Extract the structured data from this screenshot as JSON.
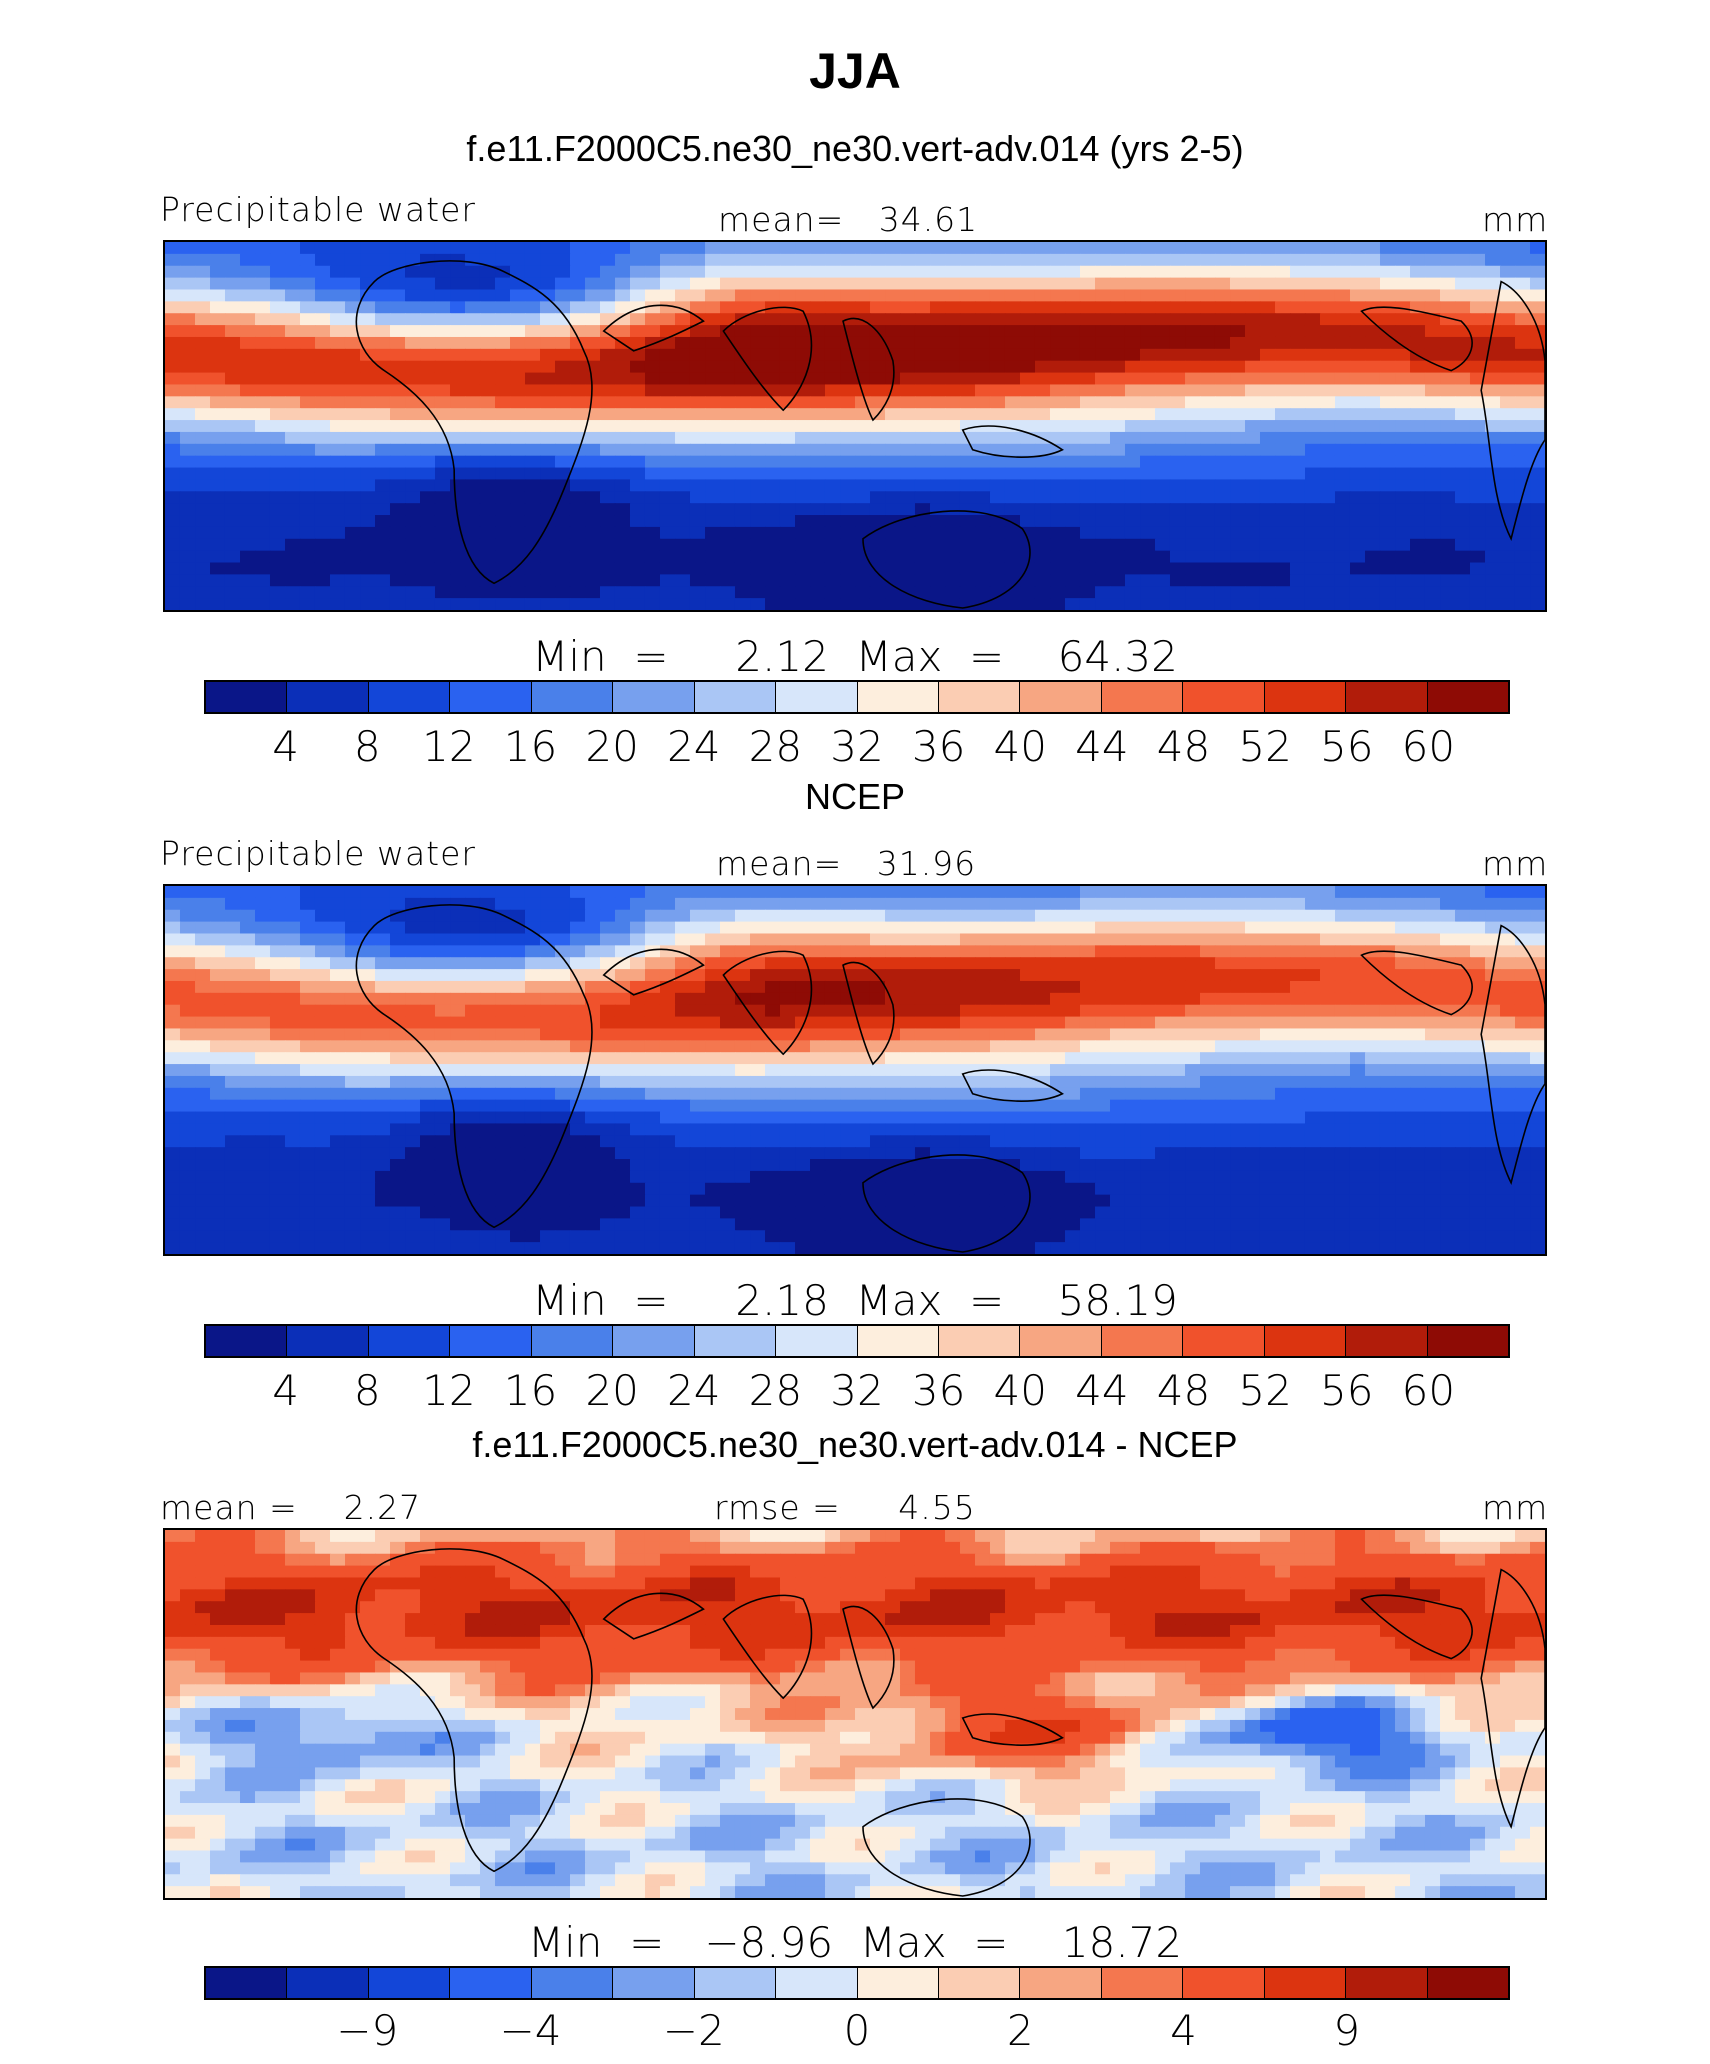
{
  "figure_title": "JJA",
  "colors": {
    "palette": [
      "#0a1688",
      "#0b2fb8",
      "#1346d8",
      "#2a62f0",
      "#4a80ea",
      "#77a0ee",
      "#aac6f5",
      "#d7e6fa",
      "#fdeedd",
      "#fbcdb3",
      "#f7a682",
      "#f4774f",
      "#f0522c",
      "#dc3410",
      "#b11c0a",
      "#8e0b05"
    ]
  },
  "panels": [
    {
      "title": "f.e11.F2000C5.ne30_ne30.vert-adv.014 (yrs 2-5)",
      "left_label": "Precipitable water",
      "center_label": "mean=   34.61",
      "right_label": "mm",
      "minmax": "Min  =     2.12  Max  =    64.32",
      "colorbar_ticks": [
        "4",
        "8",
        "12",
        "16",
        "20",
        "24",
        "28",
        "32",
        "36",
        "40",
        "44",
        "48",
        "52",
        "56",
        "60"
      ],
      "map": {
        "variable": "model_pw",
        "levels": [
          4,
          8,
          12,
          16,
          20,
          24,
          28,
          32,
          36,
          40,
          44,
          48,
          52,
          56,
          60
        ]
      }
    },
    {
      "title": "NCEP",
      "left_label": "Precipitable water",
      "center_label": "mean=   31.96",
      "right_label": "mm",
      "minmax": "Min  =     2.18  Max  =    58.19",
      "colorbar_ticks": [
        "4",
        "8",
        "12",
        "16",
        "20",
        "24",
        "28",
        "32",
        "36",
        "40",
        "44",
        "48",
        "52",
        "56",
        "60"
      ],
      "map": {
        "variable": "obs_pw",
        "levels": [
          4,
          8,
          12,
          16,
          20,
          24,
          28,
          32,
          36,
          40,
          44,
          48,
          52,
          56,
          60
        ]
      }
    },
    {
      "title": "f.e11.F2000C5.ne30_ne30.vert-adv.014 - NCEP",
      "left_label": "mean =    2.27",
      "center_label": "rmse =     4.55",
      "right_label": "mm",
      "minmax": "Min  =   −8.96  Max  =    18.72",
      "colorbar_ticks": [
        "−9",
        "−4",
        "−2",
        "0",
        "2",
        "4",
        "9"
      ],
      "colorbar_tick_index": [
        2,
        4,
        6,
        8,
        10,
        12,
        14
      ],
      "map": {
        "variable": "difference",
        "levels": [
          -12,
          -9,
          -7,
          -4,
          -3,
          -2,
          -1,
          0,
          1,
          2,
          3,
          4,
          7,
          9,
          12
        ]
      }
    }
  ]
}
